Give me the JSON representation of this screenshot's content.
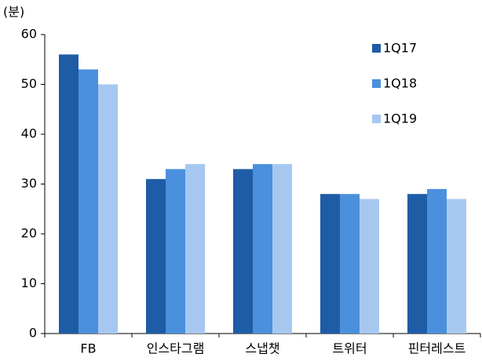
{
  "chart_data": {
    "type": "bar",
    "y_unit": "(분)",
    "categories": [
      "FB",
      "인스타그램",
      "스냅챗",
      "트위터",
      "핀터레스트"
    ],
    "series": [
      {
        "name": "1Q17",
        "color": "#1f5ca6",
        "values": [
          56,
          31,
          33,
          28,
          28
        ]
      },
      {
        "name": "1Q18",
        "color": "#4a90dc",
        "values": [
          53,
          33,
          34,
          28,
          29
        ]
      },
      {
        "name": "1Q19",
        "color": "#a6c8f0",
        "values": [
          50,
          34,
          34,
          27,
          27
        ]
      }
    ],
    "ylim": [
      0,
      60
    ],
    "yticks": [
      0,
      10,
      20,
      30,
      40,
      50,
      60
    ],
    "grid": false,
    "legend": "top-right"
  }
}
